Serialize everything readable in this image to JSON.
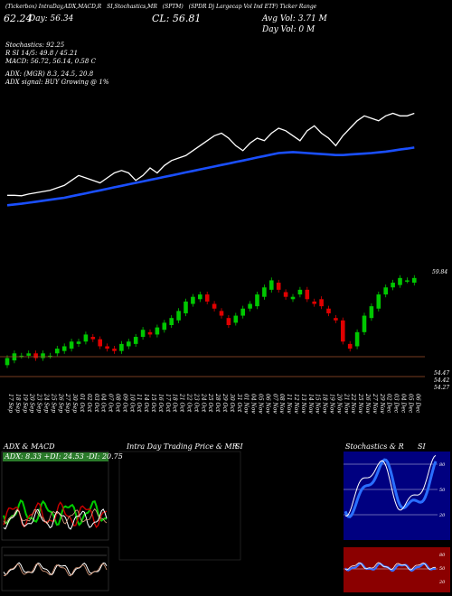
{
  "header": {
    "line1": [
      "(Tickerbox)",
      "IntraDay,ADX,MACD,R",
      "SI,Stochastics,MR",
      "(SPTM)",
      "(SPDR Dj Largecap Vol Ind ETF) Ticker Range"
    ],
    "prices": [
      "62.24",
      "Day: 56.34",
      "CL: 56.81"
    ],
    "right_lines": [
      "Avg Vol: 3.71 M",
      "Day Vol: 0  M"
    ],
    "stats": [
      "Stochastics: 92.25",
      "R                    SI 14/5: 49.8  / 45.21",
      "MACD: 56.72,  56.14,  0.58  C",
      "ADX:                            (MGR) 8.3,  24.5,  20.8",
      "ADX  signal:                           BUY Growing @ 1%"
    ]
  },
  "price_labels": {
    "top_right": "59.84",
    "lower_a": "54.47",
    "lower_b": "54.42",
    "lower_c": "54.27"
  },
  "date_labels": [
    "17 Sep",
    "18 Sep",
    "19 Sep",
    "20 Sep",
    "23 Sep",
    "24 Sep",
    "25 Sep",
    "26 Sep",
    "27 Sep",
    "30 Sep",
    "01 Oct",
    "02 Oct",
    "03 Oct",
    "04 Oct",
    "07 Oct",
    "08 Oct",
    "09 Oct",
    "10 Oct",
    "11 Oct",
    "14 Oct",
    "15 Oct",
    "16 Oct",
    "17 Oct",
    "18 Oct",
    "21 Oct",
    "22 Oct",
    "23 Oct",
    "24 Oct",
    "25 Oct",
    "28 Oct",
    "29 Oct",
    "30 Oct",
    "31 Oct",
    "01 Nov",
    "04 Nov",
    "05 Nov",
    "06 Nov",
    "07 Nov",
    "08 Nov",
    "11 Nov",
    "12 Nov",
    "13 Nov",
    "14 Nov",
    "15 Nov",
    "18 Nov",
    "19 Nov",
    "20 Nov",
    "21 Nov",
    "22 Nov",
    "25 Nov",
    "26 Nov",
    "27 Nov",
    "29 Nov",
    "02 Dec",
    "03 Dec",
    "04 Dec",
    "05 Dec",
    "06 Dec"
  ],
  "panels": {
    "adx_title": "ADX  & MACD",
    "adx_values": "ADX: 8.33  +DI: 24.53  -DI: 20.75",
    "intraday_title": "Intra  Day Trading Price  & MR",
    "intraday_si": "SI",
    "stoch_title": "Stochastics & R",
    "stoch_si": "SI",
    "stoch_ticks": [
      "80",
      "50",
      "20"
    ],
    "rsi_ticks": [
      "80",
      "50",
      "20"
    ]
  },
  "colors": {
    "up": "#00c800",
    "down": "#e00000",
    "ma": "#1a4fff",
    "bg": "#000000"
  },
  "chart_data": [
    {
      "type": "line",
      "title": "",
      "series": [
        {
          "values": [
            60,
            60,
            59.8,
            60.5,
            61,
            61.5,
            62,
            63,
            64,
            66,
            68,
            67,
            66,
            65,
            67,
            69,
            70,
            69,
            66,
            68,
            71,
            69,
            72,
            74,
            75,
            76,
            78,
            80,
            82,
            84,
            85,
            83,
            80,
            78,
            81,
            83,
            82,
            85,
            87,
            86,
            84,
            82,
            86,
            88,
            85,
            83,
            80,
            84,
            87,
            90,
            92,
            91,
            90,
            92,
            93,
            92,
            92,
            93
          ]
        },
        {
          "values": [
            56,
            56.3,
            56.6,
            57,
            57.4,
            57.8,
            58.2,
            58.6,
            59,
            59.6,
            60.2,
            60.8,
            61.4,
            62,
            62.6,
            63.2,
            63.8,
            64.4,
            65,
            65.6,
            66.2,
            66.8,
            67.4,
            68,
            68.6,
            69.2,
            69.8,
            70.4,
            71,
            71.6,
            72.2,
            72.8,
            73.4,
            74,
            74.6,
            75.2,
            75.8,
            76.4,
            77,
            77.2,
            77.4,
            77.2,
            77,
            76.8,
            76.6,
            76.4,
            76.2,
            76.2,
            76.4,
            76.6,
            76.8,
            77,
            77.3,
            77.6,
            78,
            78.4,
            78.8,
            79.2
          ]
        }
      ]
    },
    {
      "type": "candlestick",
      "categories": [
        "17 Sep",
        "18 Sep",
        "19 Sep",
        "20 Sep",
        "23 Sep",
        "24 Sep",
        "25 Sep",
        "26 Sep",
        "27 Sep",
        "30 Sep",
        "01 Oct",
        "02 Oct",
        "03 Oct",
        "04 Oct",
        "07 Oct",
        "08 Oct",
        "09 Oct",
        "10 Oct",
        "11 Oct",
        "14 Oct",
        "15 Oct",
        "16 Oct",
        "17 Oct",
        "18 Oct",
        "21 Oct",
        "22 Oct",
        "23 Oct",
        "24 Oct",
        "25 Oct",
        "28 Oct",
        "29 Oct",
        "30 Oct",
        "31 Oct",
        "01 Nov",
        "04 Nov",
        "05 Nov",
        "06 Nov",
        "07 Nov",
        "08 Nov",
        "11 Nov",
        "12 Nov",
        "13 Nov",
        "14 Nov",
        "15 Nov",
        "18 Nov",
        "19 Nov",
        "20 Nov",
        "21 Nov",
        "22 Nov",
        "25 Nov",
        "26 Nov",
        "27 Nov",
        "29 Nov",
        "02 Dec",
        "03 Dec",
        "04 Dec",
        "05 Dec",
        "06 Dec"
      ],
      "open": [
        54.6,
        54.8,
        55.0,
        55.0,
        55.1,
        54.9,
        55.0,
        55.1,
        55.2,
        55.3,
        55.5,
        55.6,
        55.8,
        55.7,
        55.4,
        55.3,
        55.2,
        55.4,
        55.5,
        55.8,
        56.0,
        55.9,
        56.1,
        56.3,
        56.5,
        56.8,
        57.2,
        57.4,
        57.6,
        57.2,
        56.9,
        56.6,
        56.4,
        56.7,
        57.0,
        57.1,
        57.5,
        57.8,
        58.1,
        57.7,
        57.4,
        57.6,
        57.8,
        57.3,
        57.4,
        57.0,
        56.6,
        56.5,
        55.5,
        55.4,
        56.0,
        56.6,
        57.0,
        57.6,
        57.9,
        58.0,
        58.2,
        58.1
      ],
      "close": [
        54.9,
        55.1,
        55.0,
        55.1,
        54.9,
        55.1,
        55.0,
        55.3,
        55.4,
        55.6,
        55.6,
        55.9,
        55.7,
        55.4,
        55.3,
        55.2,
        55.5,
        55.6,
        55.8,
        56.1,
        55.9,
        56.2,
        56.4,
        56.6,
        56.9,
        57.3,
        57.5,
        57.6,
        57.3,
        57.0,
        56.7,
        56.3,
        56.7,
        57.0,
        57.2,
        57.6,
        57.9,
        58.2,
        57.8,
        57.5,
        57.5,
        57.8,
        57.4,
        57.2,
        57.1,
        56.8,
        56.5,
        55.6,
        55.3,
        56.0,
        56.7,
        57.1,
        57.6,
        57.9,
        58.1,
        58.3,
        58.2,
        58.3
      ]
    }
  ]
}
